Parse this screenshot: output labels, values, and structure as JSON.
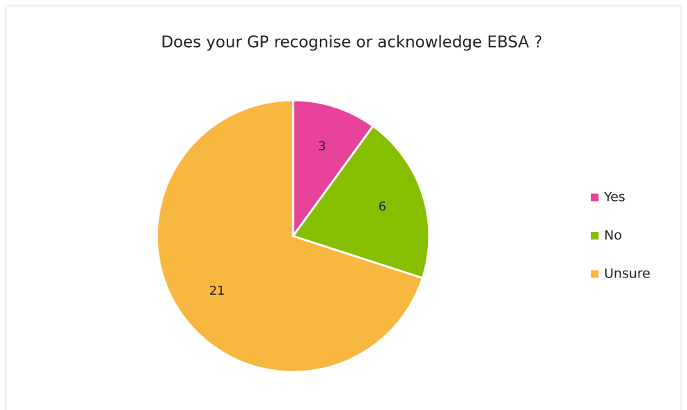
{
  "chart_data": {
    "type": "pie",
    "title": "Does your GP recognise or acknowledge EBSA ?",
    "categories": [
      "Yes",
      "No",
      "Unsure"
    ],
    "values": [
      3,
      6,
      21
    ],
    "colors": [
      "#e8439a",
      "#86bf00",
      "#f8b73f"
    ],
    "legend": "right"
  }
}
